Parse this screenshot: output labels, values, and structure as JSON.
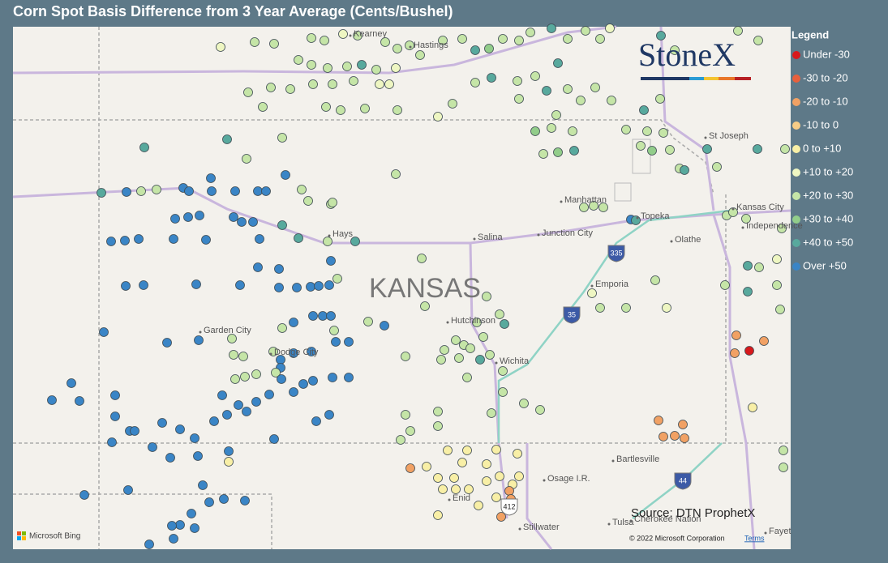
{
  "title": "Corn Spot Basis Difference from 3 Year Average (Cents/Bushel)",
  "legend": {
    "title": "Legend",
    "items": [
      {
        "label": "Under -30",
        "color": "#d7191c"
      },
      {
        "label": "-30 to -20",
        "color": "#e8603c"
      },
      {
        "label": "-20 to -10",
        "color": "#f1a164"
      },
      {
        "label": "-10 to 0",
        "color": "#f7cc86"
      },
      {
        "label": "0 to +10",
        "color": "#f8efa6"
      },
      {
        "label": "+10 to +20",
        "color": "#eef6c2"
      },
      {
        "label": "+20 to +30",
        "color": "#c5e5a7"
      },
      {
        "label": "+30 to +40",
        "color": "#92cd8a"
      },
      {
        "label": "+40 to +50",
        "color": "#58a99d"
      },
      {
        "label": "Over +50",
        "color": "#3a85c6"
      }
    ]
  },
  "map": {
    "state_label": "KANSAS",
    "places": [
      "Kearney",
      "Hastings",
      "St Joseph",
      "Manhattan",
      "Topeka",
      "Kansas City",
      "Independence",
      "Olathe",
      "Hays",
      "Salina",
      "Junction City",
      "Emporia",
      "Hutchinson",
      "Garden City",
      "Dodge City",
      "Wichita",
      "Bartlesville",
      "Osage I.R.",
      "Enid",
      "Tulsa",
      "Cherokee Nation",
      "Stillwater",
      "Fayet"
    ],
    "shields": [
      "335",
      "35",
      "44",
      "412"
    ]
  },
  "logo": "StoneX",
  "source": "Source: DTN ProphetX",
  "attribution": {
    "bing": "Microsoft Bing",
    "copyright": "© 2022 Microsoft Corporation",
    "terms": "Terms"
  }
}
